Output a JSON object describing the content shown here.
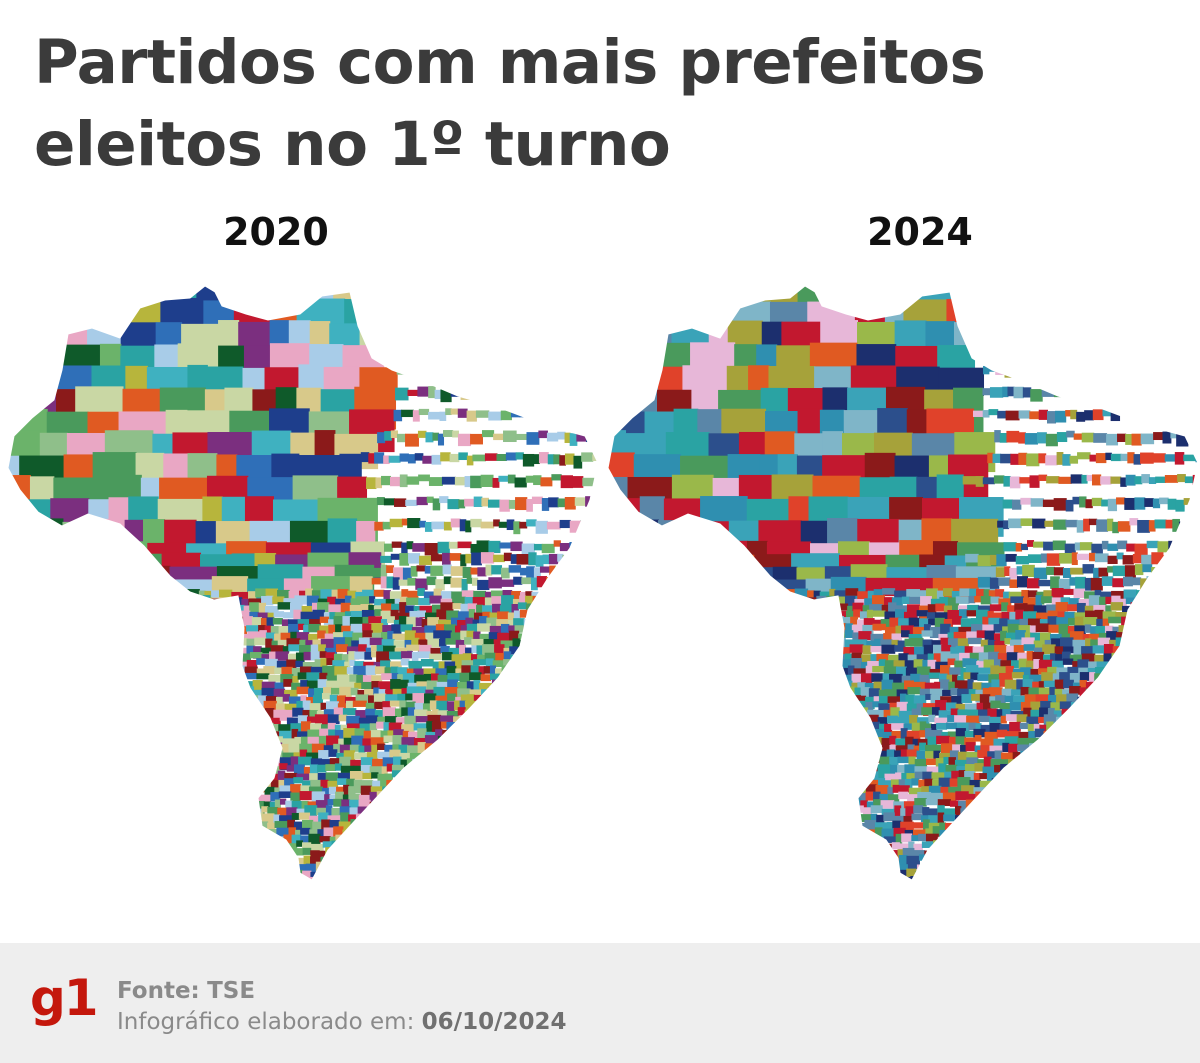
{
  "title": {
    "line1": "Partidos com mais prefeitos",
    "line2": "eleitos no 1º turno"
  },
  "maps": [
    {
      "year": "2020",
      "palette": [
        "#4a9a5c",
        "#2f6fb8",
        "#8fbf8a",
        "#c9d7a4",
        "#a8cce8",
        "#1e3e8c",
        "#b7b53c",
        "#e05a22",
        "#c2182f",
        "#8b1a1a",
        "#3fb1c0",
        "#e9a7c4",
        "#6bb36a",
        "#d8c98a",
        "#2aa3a3",
        "#7b2f7f",
        "#0f5a2a"
      ]
    },
    {
      "year": "2024",
      "palette": [
        "#2f8fb0",
        "#3aa3b8",
        "#2c4f8c",
        "#4a9a5c",
        "#a6a23a",
        "#e0422a",
        "#c2182f",
        "#e7b7d8",
        "#1c2f6e",
        "#5a86a8",
        "#7fb5c8",
        "#e05a22",
        "#2aa3a3",
        "#9ab84a",
        "#8b1a1a"
      ]
    }
  ],
  "footer": {
    "logo": "g1",
    "source_label": "Fonte:",
    "source_value": "TSE",
    "date_label": "Infográfico elaborado em:",
    "date_value": "06/10/2024"
  }
}
